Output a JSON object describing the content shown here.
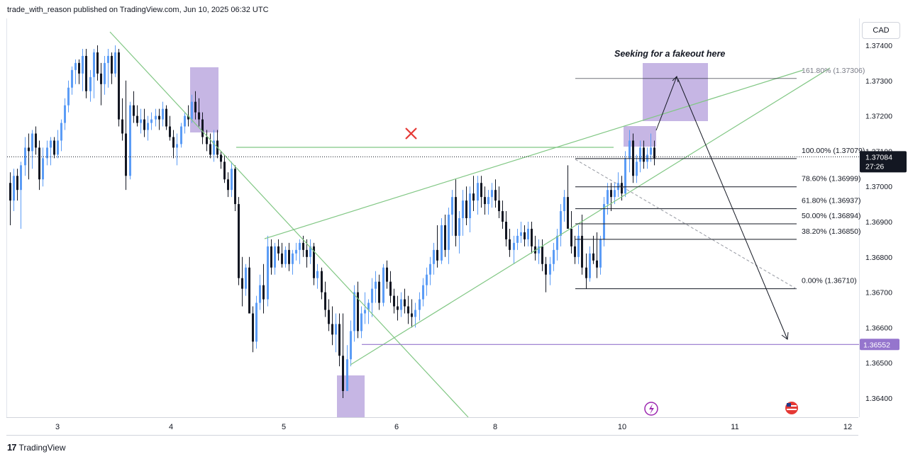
{
  "header": {
    "published": "trade_with_reason published on TradingView.com, Jun 10, 2025 06:32 UTC"
  },
  "footer": {
    "brand": "TradingView",
    "logo_glyph": "17"
  },
  "axis": {
    "currency": "CAD"
  },
  "colors": {
    "bull": "#5b9cf6",
    "bear": "#131722",
    "trend": "#81c784",
    "box": "#b39ddb",
    "cross": "#e53935"
  },
  "icons": [
    "lightning-icon",
    "us-flag-icon"
  ],
  "chart_data": {
    "type": "candlestick",
    "symbol_currency": "CAD",
    "yticks": [
      1.374,
      1.373,
      1.372,
      1.371,
      1.37,
      1.369,
      1.368,
      1.367,
      1.366,
      1.365,
      1.364
    ],
    "ytick_labels": [
      "1.37400",
      "1.37300",
      "1.37200",
      "1.37100",
      "1.37000",
      "1.36900",
      "1.36800",
      "1.36700",
      "1.36600",
      "1.36500",
      "1.36400"
    ],
    "ylim": [
      1.3635,
      1.3746
    ],
    "xticks": [
      "3",
      "4",
      "5",
      "6",
      "8",
      "10",
      "11",
      "12"
    ],
    "current_price": {
      "value": 1.37084,
      "label": "1.37084",
      "countdown": "27:26"
    },
    "target_level": {
      "value": 1.36552,
      "label": "1.36552"
    },
    "fib_levels": [
      {
        "label": "161.80% (1.37306)",
        "value": 1.37306
      },
      {
        "label": "100.00% (1.37079)",
        "value": 1.37079
      },
      {
        "label": "78.60% (1.36999)",
        "value": 1.36999
      },
      {
        "label": "61.80% (1.36937)",
        "value": 1.36937
      },
      {
        "label": "50.00% (1.36894)",
        "value": 1.36894
      },
      {
        "label": "38.20% (1.36850)",
        "value": 1.3685
      },
      {
        "label": "0.00% (1.36710)",
        "value": 1.3671
      }
    ],
    "annotations": [
      {
        "text": "Seeking for a fakeout here"
      }
    ]
  }
}
